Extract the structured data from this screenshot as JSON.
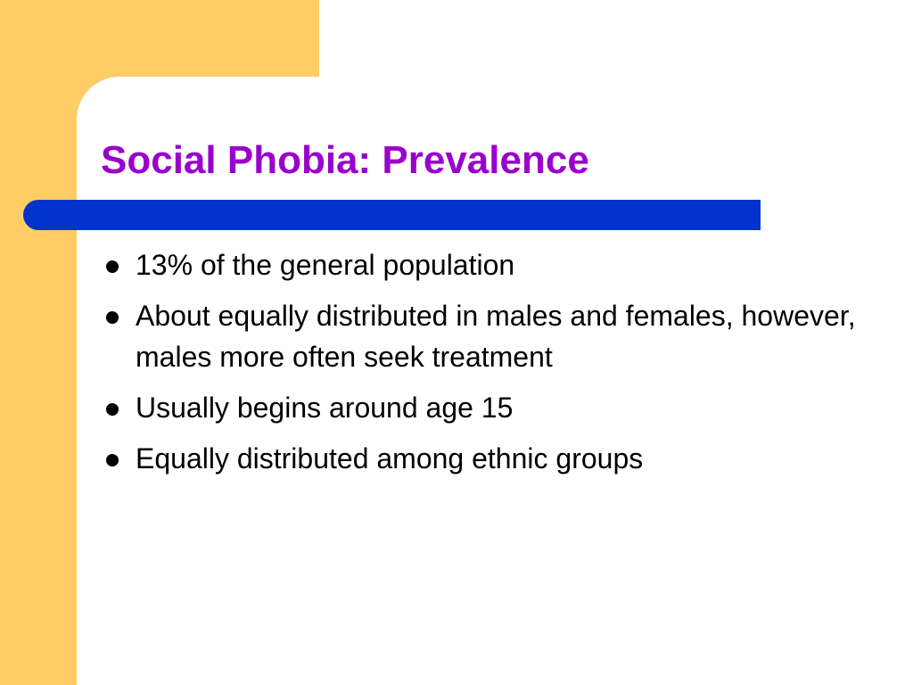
{
  "slide": {
    "title": "Social Phobia: Prevalence",
    "bullets": [
      "13% of the general population",
      "About equally distributed in males and females, however, males more often seek treatment",
      "Usually begins around age 15",
      "Equally distributed among ethnic groups"
    ]
  },
  "colors": {
    "accent_block": "#FFCC66",
    "title_text": "#9900CC",
    "title_bar": "#0033CC",
    "body_text": "#000000",
    "background": "#FFFFFF"
  }
}
